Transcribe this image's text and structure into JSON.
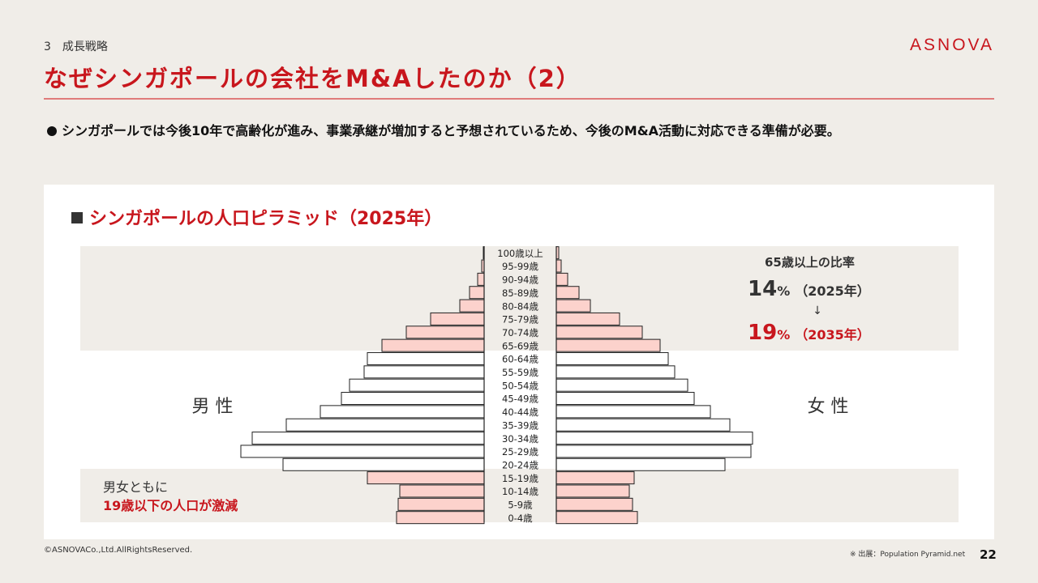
{
  "header": {
    "section": "3　成長戦略",
    "logo": "ASNOVA",
    "title": "なぜシンガポールの会社をM&Aしたのか（2）"
  },
  "bullet": "シンガポールでは今後10年で高齢化が進み、事業承継が増加すると予想されているため、今後のM&A活動に対応できる準備が必要。",
  "chart_title": "シンガポールの人口ピラミッド（2025年）",
  "labels": {
    "male": "男 性",
    "female": "女 性",
    "note_line1": "男女ともに",
    "note_line2": "19歳以下の人口が激減",
    "ratio_title": "65歳以上の比率",
    "ratio_2025_value": "14",
    "ratio_2025_unit": "%",
    "ratio_2025_year": "（2025年）",
    "arrow": "↓",
    "ratio_2035_value": "19",
    "ratio_2035_unit": "%",
    "ratio_2035_year": "（2035年）"
  },
  "footer": {
    "copyright": "©ASNOVACo.,Ltd.AllRightsReserved.",
    "source": "※ 出展：Population Pyramid.net",
    "page": "22"
  },
  "colors": {
    "accent": "#c8161d",
    "highlight_bar": "#fcd2cc",
    "plain_bar": "#ffffff",
    "band": "#f0ede8"
  },
  "chart_data": {
    "type": "bar",
    "orientation": "horizontal-pyramid",
    "title": "シンガポールの人口ピラミッド（2025年）",
    "categories": [
      "100歳以上",
      "95-99歳",
      "90-94歳",
      "85-89歳",
      "80-84歳",
      "75-79歳",
      "70-74歳",
      "65-69歳",
      "60-64歳",
      "55-59歳",
      "50-54歳",
      "45-49歳",
      "40-44歳",
      "35-39歳",
      "30-34歳",
      "25-29歳",
      "20-24歳",
      "15-19歳",
      "10-14歳",
      "5-9歳",
      "0-4歳"
    ],
    "series": [
      {
        "name": "男 性",
        "values": [
          0.5,
          1.5,
          4,
          9,
          15,
          33,
          48,
          63,
          72,
          74,
          83,
          88,
          101,
          122,
          143,
          150,
          124,
          72,
          52,
          53,
          54
        ]
      },
      {
        "name": "女 性",
        "values": [
          1.5,
          3,
          7,
          14,
          21,
          39,
          53,
          64,
          69,
          73,
          81,
          85,
          95,
          107,
          121,
          120,
          104,
          48,
          45,
          47,
          50
        ]
      }
    ],
    "unit": "relative",
    "highlight_groups": [
      "100歳以上",
      "95-99歳",
      "90-94歳",
      "85-89歳",
      "80-84歳",
      "75-79歳",
      "70-74歳",
      "65-69歳",
      "15-19歳",
      "10-14歳",
      "5-9歳",
      "0-4歳"
    ],
    "legend": "none",
    "grid": false
  }
}
